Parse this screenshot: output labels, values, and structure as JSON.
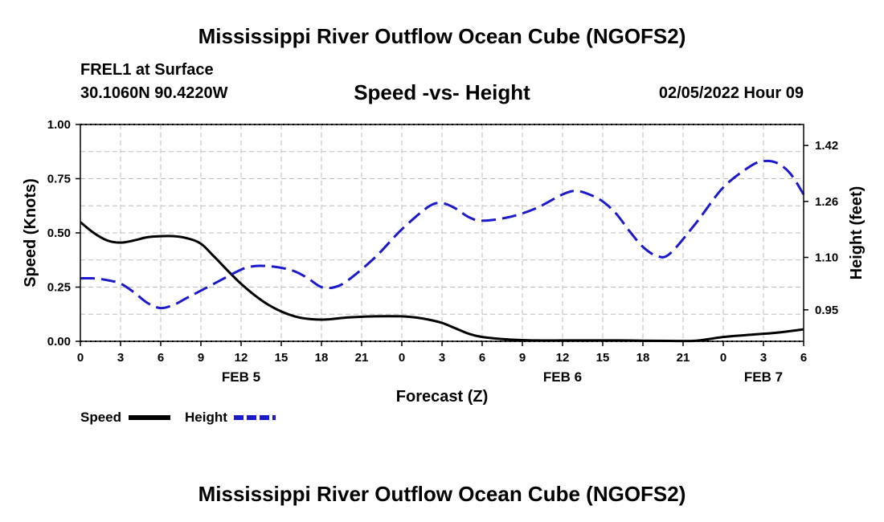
{
  "main_title": "Mississippi River Outflow Ocean Cube (NGOFS2)",
  "bottom_title": "Mississippi River Outflow Ocean Cube (NGOFS2)",
  "station": "FREL1 at Surface",
  "coords": "30.1060N  90.4220W",
  "datetime": "02/05/2022 Hour 09",
  "colors": {
    "speed": "#000000",
    "height": "#1a1acc",
    "grid": "#bbbbbb"
  },
  "chart_data": {
    "type": "line",
    "title": "Speed -vs- Height",
    "xlabel": "Forecast (Z)",
    "ylabel_left": "Speed (Knots)",
    "ylabel_right": "Height (feet)",
    "x_range": [
      0,
      54
    ],
    "ylim_left": [
      0,
      1.0
    ],
    "ylim_right": [
      0.86,
      1.48
    ],
    "x_tick_values": [
      0,
      3,
      6,
      9,
      12,
      15,
      18,
      21,
      24,
      27,
      30,
      33,
      36,
      39,
      42,
      45,
      48,
      51,
      54
    ],
    "x_tick_labels": [
      "0",
      "3",
      "6",
      "9",
      "12",
      "15",
      "18",
      "21",
      "0",
      "3",
      "6",
      "9",
      "12",
      "15",
      "18",
      "21",
      "0",
      "3",
      "6"
    ],
    "day_labels": [
      {
        "label": "FEB 5",
        "x": 12
      },
      {
        "label": "FEB 6",
        "x": 36
      },
      {
        "label": "FEB 7",
        "x": 51
      }
    ],
    "y_left_ticks": [
      "0.00",
      "0.25",
      "0.50",
      "0.75",
      "1.00"
    ],
    "y_left_tick_values": [
      0,
      0.25,
      0.5,
      0.75,
      1.0
    ],
    "y_right_ticks": [
      "0.95",
      "1.10",
      "1.26",
      "1.42"
    ],
    "y_right_tick_values": [
      0.95,
      1.1,
      1.26,
      1.42
    ],
    "legend": [
      {
        "name": "Speed",
        "style": "solid"
      },
      {
        "name": "Height",
        "style": "dashed"
      }
    ],
    "series": [
      {
        "name": "Speed",
        "axis": "left",
        "x": [
          0,
          1,
          2,
          3,
          4,
          5,
          6,
          7,
          8,
          9,
          10,
          12,
          14,
          16,
          18,
          20,
          22,
          24,
          25,
          26,
          27,
          28,
          29,
          30,
          32,
          34,
          36,
          38,
          40,
          42,
          44,
          46,
          48,
          50,
          52,
          54
        ],
        "values": [
          0.55,
          0.5,
          0.465,
          0.455,
          0.465,
          0.48,
          0.485,
          0.485,
          0.475,
          0.45,
          0.39,
          0.265,
          0.17,
          0.115,
          0.1,
          0.11,
          0.115,
          0.115,
          0.11,
          0.1,
          0.085,
          0.06,
          0.035,
          0.02,
          0.008,
          0.004,
          0.004,
          0.004,
          0.004,
          0.003,
          0.002,
          0.003,
          0.02,
          0.03,
          0.04,
          0.055
        ]
      },
      {
        "name": "Height",
        "axis": "right",
        "x": [
          0,
          1,
          2,
          3,
          4,
          5,
          6,
          7,
          8,
          10,
          12,
          13,
          14,
          15,
          16,
          17,
          18,
          19,
          20,
          22,
          24,
          26,
          27,
          28,
          29,
          30,
          32,
          34,
          36,
          37,
          38,
          39,
          40,
          41,
          42,
          43,
          44,
          46,
          48,
          50,
          51,
          52,
          53,
          54
        ],
        "values": [
          1.04,
          1.04,
          1.035,
          1.025,
          1.0,
          0.97,
          0.955,
          0.965,
          0.985,
          1.025,
          1.065,
          1.075,
          1.075,
          1.07,
          1.06,
          1.04,
          1.015,
          1.015,
          1.035,
          1.1,
          1.18,
          1.245,
          1.255,
          1.24,
          1.215,
          1.205,
          1.215,
          1.24,
          1.28,
          1.29,
          1.28,
          1.26,
          1.225,
          1.175,
          1.13,
          1.105,
          1.11,
          1.2,
          1.3,
          1.36,
          1.375,
          1.37,
          1.34,
          1.28
        ]
      }
    ]
  }
}
